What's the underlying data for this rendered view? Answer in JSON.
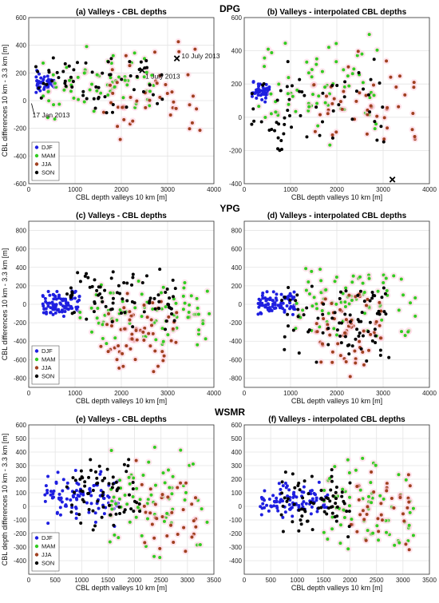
{
  "figure": {
    "site_titles": [
      "DPG",
      "YPG",
      "WSMR"
    ]
  },
  "legend": {
    "entries": [
      "DJF",
      "MAM",
      "JJA",
      "SON"
    ]
  },
  "chart_data": [
    {
      "id": "a",
      "type": "scatter",
      "row": 0,
      "col": 0,
      "title": "(a) Valleys - CBL depths",
      "xlabel": "CBL depth valleys 10 km [m]",
      "ylabel": "CBL differences 10 km - 3.3 km [m]",
      "xlim": [
        0,
        4000
      ],
      "xticks": [
        0,
        1000,
        2000,
        3000,
        4000
      ],
      "ylim": [
        -600,
        600
      ],
      "yticks": [
        -600,
        -400,
        -200,
        0,
        200,
        400,
        600
      ],
      "grid": true,
      "legend": "lower-left",
      "gen": {
        "DJF": [
          [
            150,
            550
          ],
          [
            30,
            220
          ],
          45
        ],
        "MAM": [
          [
            300,
            2700
          ],
          [
            -150,
            400
          ],
          70
        ],
        "JJA": [
          [
            1600,
            3700
          ],
          [
            -420,
            470
          ],
          45
        ],
        "SON": [
          [
            150,
            2900
          ],
          [
            -150,
            380
          ],
          60
        ]
      },
      "markers": [
        {
          "x": 3200,
          "y": 305
        },
        {
          "x": 2450,
          "y": 220
        }
      ],
      "annotations": [
        {
          "text": "10 July 2013",
          "x": 3300,
          "y": 305
        },
        {
          "text": "1 July 2013",
          "x": 2520,
          "y": 160
        },
        {
          "text": "17 Jan 2013",
          "x": 80,
          "y": -120
        }
      ]
    },
    {
      "id": "b",
      "type": "scatter",
      "row": 0,
      "col": 1,
      "title": "(b) Valleys - interpolated CBL depths",
      "xlabel": "CBL depth valleys 10 km [m]",
      "ylabel": "",
      "xlim": [
        0,
        4000
      ],
      "xticks": [
        0,
        1000,
        2000,
        3000,
        4000
      ],
      "ylim": [
        -400,
        600
      ],
      "yticks": [
        -400,
        -200,
        0,
        200,
        400,
        600
      ],
      "grid": true,
      "gen": {
        "DJF": [
          [
            150,
            550
          ],
          [
            80,
            220
          ],
          45
        ],
        "MAM": [
          [
            300,
            2900
          ],
          [
            -200,
            560
          ],
          70
        ],
        "JJA": [
          [
            1500,
            3700
          ],
          [
            -300,
            430
          ],
          45
        ],
        "SON": [
          [
            150,
            3100
          ],
          [
            -300,
            360
          ],
          60
        ]
      },
      "markers": [
        {
          "x": 3200,
          "y": -375
        }
      ],
      "annotations": []
    },
    {
      "id": "c",
      "type": "scatter",
      "row": 1,
      "col": 0,
      "title": "(c) Valleys - CBL depths",
      "xlabel": "CBL depth valleys 10 km [m]",
      "ylabel": "CBL differences 10 km - 3.3 km [m]",
      "xlim": [
        0,
        4000
      ],
      "xticks": [
        0,
        1000,
        2000,
        3000,
        4000
      ],
      "ylim": [
        -900,
        900
      ],
      "yticks": [
        -800,
        -600,
        -400,
        -200,
        0,
        200,
        400,
        600,
        800
      ],
      "grid": true,
      "legend": "lower-left",
      "gen": {
        "DJF": [
          [
            300,
            1100
          ],
          [
            -150,
            150
          ],
          90
        ],
        "MAM": [
          [
            1100,
            3900
          ],
          [
            -500,
            300
          ],
          80
        ],
        "JJA": [
          [
            1500,
            3200
          ],
          [
            -850,
            250
          ],
          60
        ],
        "SON": [
          [
            800,
            3200
          ],
          [
            -300,
            450
          ],
          80
        ]
      },
      "markers": [],
      "annotations": []
    },
    {
      "id": "d",
      "type": "scatter",
      "row": 1,
      "col": 1,
      "title": "(d) Valleys - interpolated CBL depths",
      "xlabel": "CBL depth valleys 10 km [m]",
      "ylabel": "",
      "xlim": [
        0,
        4000
      ],
      "xticks": [
        0,
        1000,
        2000,
        3000,
        4000
      ],
      "ylim": [
        -900,
        900
      ],
      "yticks": [
        -800,
        -600,
        -400,
        -200,
        0,
        200,
        400,
        600,
        800
      ],
      "grid": true,
      "gen": {
        "DJF": [
          [
            300,
            1100
          ],
          [
            -150,
            150
          ],
          90
        ],
        "MAM": [
          [
            1100,
            3700
          ],
          [
            -450,
            480
          ],
          80
        ],
        "JJA": [
          [
            1500,
            3000
          ],
          [
            -850,
            260
          ],
          60
        ],
        "SON": [
          [
            800,
            3200
          ],
          [
            -700,
            300
          ],
          80
        ]
      },
      "markers": [],
      "annotations": []
    },
    {
      "id": "e",
      "type": "scatter",
      "row": 2,
      "col": 0,
      "title": "(e) Valleys - CBL depths",
      "xlabel": "CBL depth valleys 10 km [m]",
      "ylabel": "CBL depth differences 10 km - 3.3 km [m]",
      "xlim": [
        0,
        3500
      ],
      "xticks": [
        0,
        500,
        1000,
        1500,
        2000,
        2500,
        3000,
        3500
      ],
      "ylim": [
        -500,
        600
      ],
      "yticks": [
        -400,
        -300,
        -200,
        -100,
        0,
        100,
        200,
        300,
        400,
        500,
        600
      ],
      "grid": true,
      "legend": "lower-left",
      "gen": {
        "DJF": [
          [
            300,
            1700
          ],
          [
            -150,
            280
          ],
          100
        ],
        "MAM": [
          [
            1500,
            3400
          ],
          [
            -420,
            520
          ],
          70
        ],
        "JJA": [
          [
            2000,
            3200
          ],
          [
            -380,
            340
          ],
          35
        ],
        "SON": [
          [
            700,
            2100
          ],
          [
            -180,
            400
          ],
          70
        ]
      },
      "markers": [],
      "annotations": []
    },
    {
      "id": "f",
      "type": "scatter",
      "row": 2,
      "col": 1,
      "title": "(f) Valleys - interpolated CBL depths",
      "xlabel": "CBL depth valleys 10 km [m]",
      "ylabel": "",
      "xlim": [
        0,
        3500
      ],
      "xticks": [
        0,
        500,
        1000,
        1500,
        2000,
        2500,
        3000,
        3500
      ],
      "ylim": [
        -500,
        600
      ],
      "yticks": [
        -400,
        -300,
        -200,
        -100,
        0,
        100,
        200,
        300,
        400,
        500,
        600
      ],
      "grid": true,
      "gen": {
        "DJF": [
          [
            300,
            1600
          ],
          [
            -100,
            200
          ],
          100
        ],
        "MAM": [
          [
            1500,
            3200
          ],
          [
            -420,
            420
          ],
          70
        ],
        "JJA": [
          [
            2000,
            3200
          ],
          [
            -330,
            320
          ],
          35
        ],
        "SON": [
          [
            700,
            2000
          ],
          [
            -250,
            300
          ],
          70
        ]
      },
      "markers": [],
      "annotations": []
    }
  ],
  "colors": {
    "DJF": "#1f1fe0",
    "MAM": "#33cc22",
    "JJA": "#a04020",
    "SON": "#000000",
    "grid": "#e4e4e4"
  }
}
